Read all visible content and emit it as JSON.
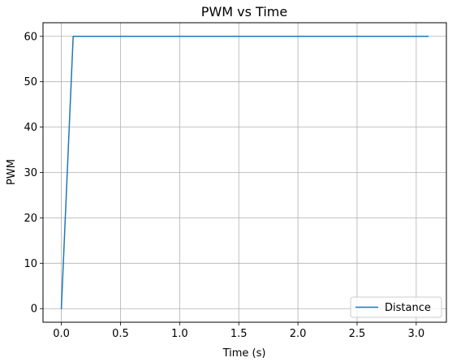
{
  "chart_data": {
    "type": "line",
    "title": "PWM vs Time",
    "xlabel": "Time (s)",
    "ylabel": "PWM",
    "xlim": [
      -0.155,
      3.255
    ],
    "ylim": [
      -3,
      63
    ],
    "x_ticks": [
      0.0,
      0.5,
      1.0,
      1.5,
      2.0,
      2.5,
      3.0
    ],
    "x_tick_labels": [
      "0.0",
      "0.5",
      "1.0",
      "1.5",
      "2.0",
      "2.5",
      "3.0"
    ],
    "y_ticks": [
      0,
      10,
      20,
      30,
      40,
      50,
      60
    ],
    "y_tick_labels": [
      "0",
      "10",
      "20",
      "30",
      "40",
      "50",
      "60"
    ],
    "grid": true,
    "legend_position": "bottom-right",
    "series": [
      {
        "name": "Distance",
        "color": "#1f77b4",
        "x": [
          0.0,
          0.1,
          3.1
        ],
        "y": [
          0,
          60,
          60
        ]
      }
    ]
  }
}
